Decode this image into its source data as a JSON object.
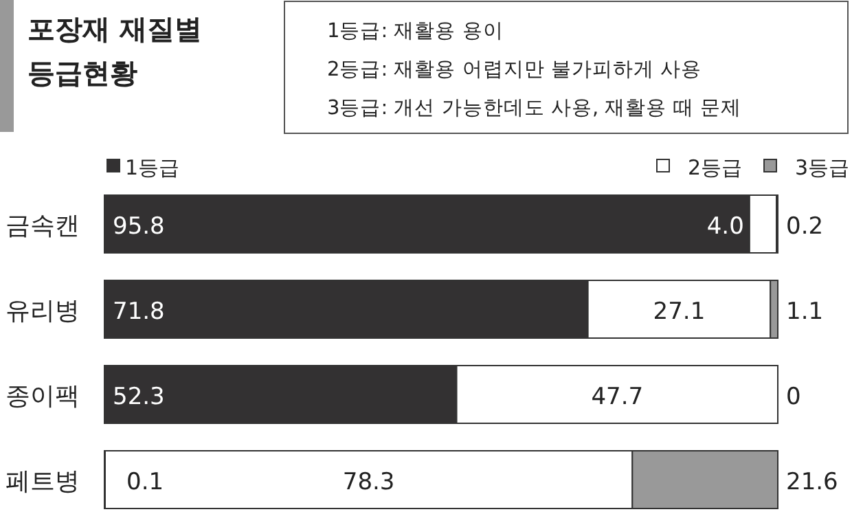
{
  "chart_data": {
    "type": "bar",
    "orientation": "horizontal",
    "stacked": true,
    "title": "포장재 재질별 등급현황",
    "categories": [
      "금속캔",
      "유리병",
      "종이팩",
      "페트병"
    ],
    "series": [
      {
        "name": "1등급",
        "color": "#333132",
        "values": [
          95.8,
          71.8,
          52.3,
          0.1
        ],
        "value_labels": [
          "95.8",
          "71.8",
          "52.3",
          "0.1"
        ]
      },
      {
        "name": "2등급",
        "color": "#ffffff",
        "values": [
          4.0,
          27.1,
          47.7,
          78.3
        ],
        "value_labels": [
          "4.0",
          "27.1",
          "47.7",
          "78.3"
        ]
      },
      {
        "name": "3등급",
        "color": "#999999",
        "values": [
          0.2,
          1.1,
          0,
          21.6
        ],
        "value_labels": [
          "0.2",
          "1.1",
          "0",
          "21.6"
        ]
      }
    ],
    "legend": "top",
    "annotations": [
      "1등급: 재활용 용이",
      "2등급: 재활용 어렵지만 불가피하게 사용",
      "3등급: 개선 가능한데도 사용, 재활용 때 문제"
    ]
  }
}
